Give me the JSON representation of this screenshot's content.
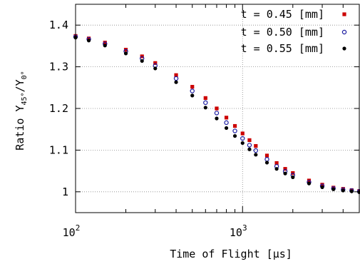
{
  "chart_data": {
    "type": "scatter",
    "title": "",
    "xlabel": "Time of Flight [µs]",
    "ylabel_base": "Ratio Y",
    "ylabel_sub1": "45°",
    "ylabel_mid": "/Y",
    "ylabel_sub2": "0°",
    "xscale": "log",
    "xlim": [
      100,
      5000
    ],
    "ylim": [
      0.95,
      1.45
    ],
    "grid": true,
    "legend_position": "top-right",
    "x_ticks": [
      {
        "value": 100,
        "base": "10",
        "exp": "2"
      },
      {
        "value": 1000,
        "base": "10",
        "exp": "3"
      }
    ],
    "y_ticks": [
      {
        "value": 1.0,
        "label": "1"
      },
      {
        "value": 1.1,
        "label": "1.1"
      },
      {
        "value": 1.2,
        "label": "1.2"
      },
      {
        "value": 1.3,
        "label": "1.3"
      },
      {
        "value": 1.4,
        "label": "1.4"
      }
    ],
    "series": [
      {
        "name": "t = 0.45 [mm]",
        "color": "#cc0000",
        "marker": "square",
        "x": [
          100,
          120,
          150,
          200,
          250,
          300,
          400,
          500,
          600,
          700,
          800,
          900,
          1000,
          1100,
          1200,
          1400,
          1600,
          1800,
          2000,
          2500,
          3000,
          3500,
          4000,
          4500,
          5000
        ],
        "y": [
          1.374,
          1.368,
          1.358,
          1.341,
          1.325,
          1.309,
          1.28,
          1.252,
          1.225,
          1.2,
          1.178,
          1.158,
          1.14,
          1.124,
          1.11,
          1.087,
          1.069,
          1.055,
          1.045,
          1.027,
          1.017,
          1.01,
          1.007,
          1.004,
          1.002
        ]
      },
      {
        "name": "t = 0.50 [mm]",
        "color": "#1a1aa0",
        "marker": "circle-open",
        "x": [
          100,
          120,
          150,
          200,
          250,
          300,
          400,
          500,
          600,
          700,
          800,
          900,
          1000,
          1100,
          1200,
          1400,
          1600,
          1800,
          2000,
          2500,
          3000,
          3500,
          4000,
          4500,
          5000
        ],
        "y": [
          1.372,
          1.366,
          1.355,
          1.337,
          1.32,
          1.303,
          1.272,
          1.242,
          1.214,
          1.189,
          1.166,
          1.146,
          1.128,
          1.112,
          1.099,
          1.078,
          1.061,
          1.049,
          1.04,
          1.023,
          1.014,
          1.008,
          1.005,
          1.003,
          1.001
        ]
      },
      {
        "name": "t = 0.55 [mm]",
        "color": "#000000",
        "marker": "circle",
        "x": [
          100,
          120,
          150,
          200,
          250,
          300,
          400,
          500,
          600,
          700,
          800,
          900,
          1000,
          1100,
          1200,
          1400,
          1600,
          1800,
          2000,
          2500,
          3000,
          3500,
          4000,
          4500,
          5000
        ],
        "y": [
          1.37,
          1.363,
          1.351,
          1.332,
          1.314,
          1.296,
          1.263,
          1.231,
          1.202,
          1.176,
          1.153,
          1.134,
          1.117,
          1.102,
          1.089,
          1.07,
          1.055,
          1.044,
          1.035,
          1.02,
          1.011,
          1.006,
          1.003,
          1.001,
          0.999
        ]
      }
    ]
  }
}
